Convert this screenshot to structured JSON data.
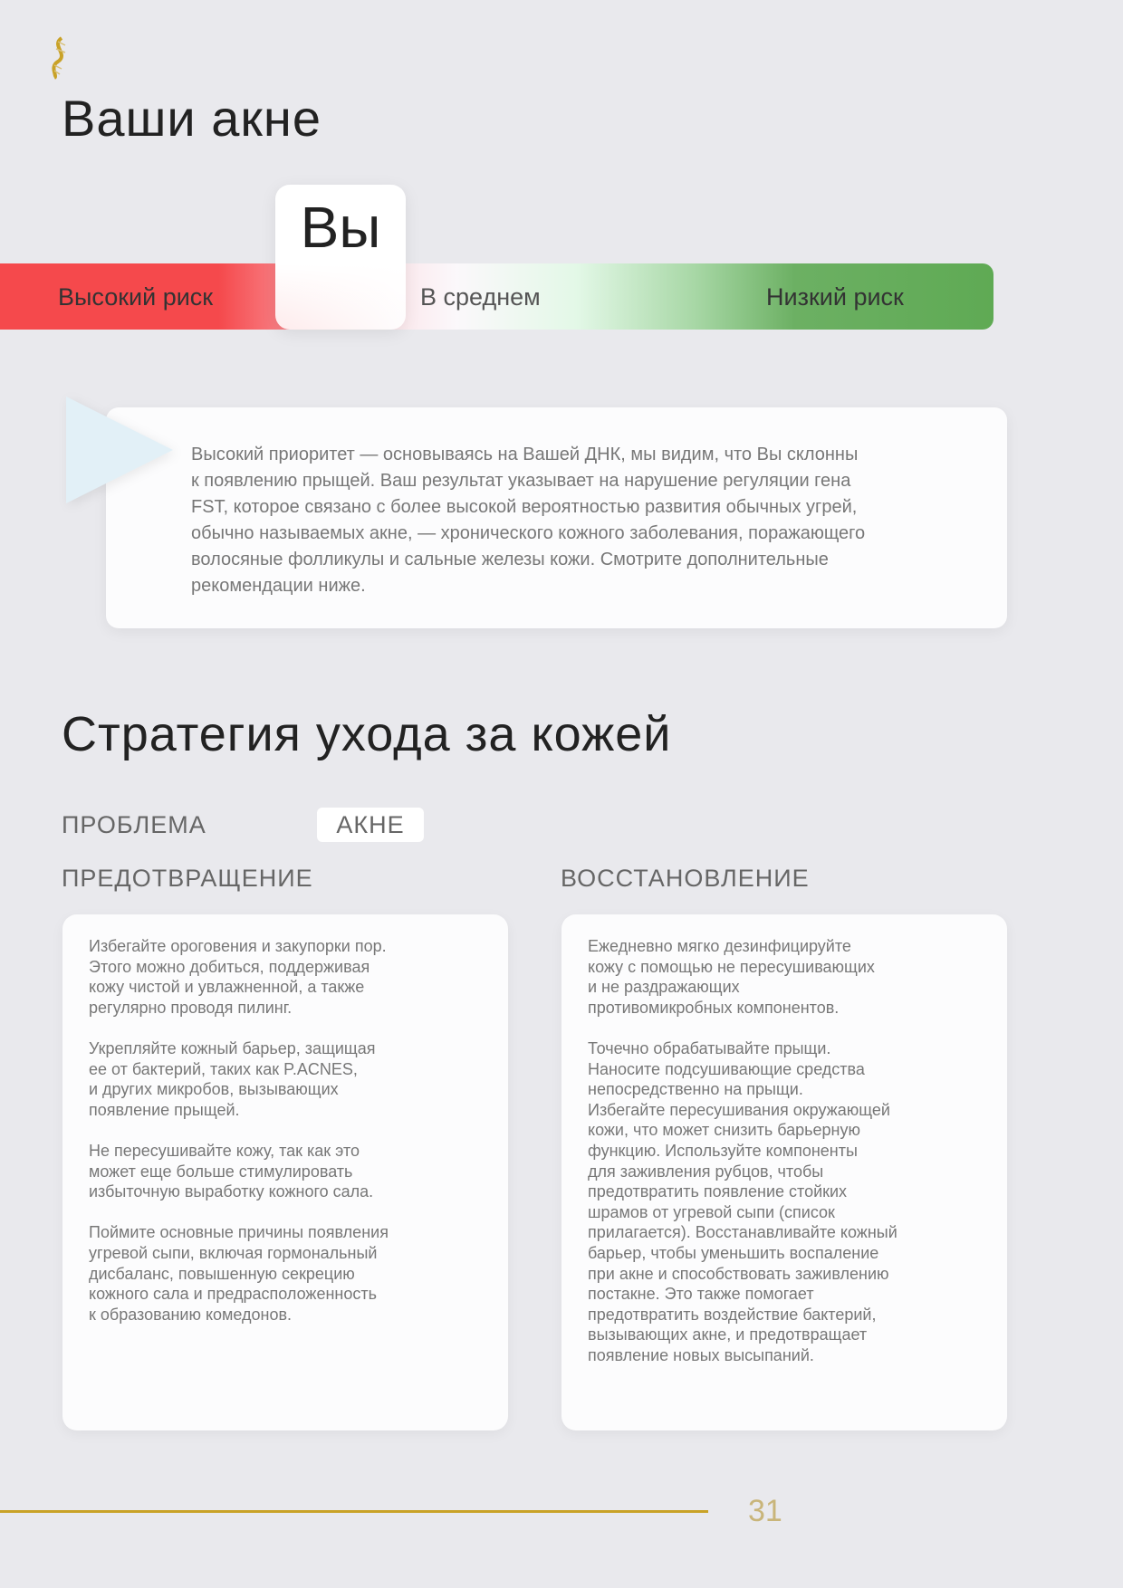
{
  "logo": {
    "icon": "dna-helix-icon",
    "color": "#c9a227"
  },
  "title": "Ваши акне",
  "risk_scale": {
    "you_label": "Вы",
    "high": "Высокий риск",
    "average": "В среднем",
    "low": "Низкий риск",
    "selected": "Высокий риск",
    "colors": {
      "high": "#f5494c",
      "low": "#5faa54"
    }
  },
  "callout": {
    "text": "Высокий приоритет — основываясь на Вашей ДНК, мы видим, что Вы склонны\nк появлению прыщей. Ваш результат указывает на нарушение регуляции гена\nFST, которое связано с более высокой вероятностью развития обычных угрей,\nобычно называемых акне, — хронического кожного заболевания, поражающего\nволосяные фолликулы и сальные железы кожи. Смотрите дополнительные\nрекомендации ниже."
  },
  "strategy": {
    "heading": "Стратегия ухода за кожей",
    "problem_label": "ПРОБЛЕМА",
    "problem_value": "АКНЕ",
    "prevention": {
      "heading": "ПРЕДОТВРАЩЕНИЕ",
      "text": "Избегайте ороговения и закупорки пор.\nЭтого можно добиться, поддерживая\nкожу чистой и увлажненной, а также\nрегулярно проводя пилинг.\n\nУкрепляйте кожный барьер, защищая\nее от бактерий, таких как P.ACNES,\nи других микробов, вызывающих\nпоявление прыщей.\n\nНе пересушивайте кожу, так как это\nможет еще больше стимулировать\nизбыточную выработку кожного сала.\n\nПоймите основные причины появления\nугревой сыпи, включая гормональный\nдисбаланс, повышенную секрецию\nкожного сала и предрасположенность\nк образованию комедонов."
    },
    "recovery": {
      "heading": "ВОССТАНОВЛЕНИЕ",
      "text": "Ежедневно мягко дезинфицируйте\nкожу с помощью не пересушивающих\nи не раздражающих\nпротивомикробных компонентов.\n\nТочечно обрабатывайте прыщи.\nНаносите подсушивающие средства\nнепосредственно на прыщи.\nИзбегайте пересушивания окружающей\nкожи, что может снизить барьерную\nфункцию. Используйте компоненты\nдля заживления рубцов, чтобы\nпредотвратить появление стойких\nшрамов от угревой сыпи (список\nприлагается). Восстанавливайте кожный\nбарьер, чтобы уменьшить воспаление\nпри акне и способствовать заживлению\nпостакне. Это также помогает\nпредотвратить воздействие бактерий,\nвызывающих акне, и предотвращает\nпоявление новых высыпаний."
    }
  },
  "footer": {
    "page_number": "31",
    "accent": "#c9a227"
  }
}
